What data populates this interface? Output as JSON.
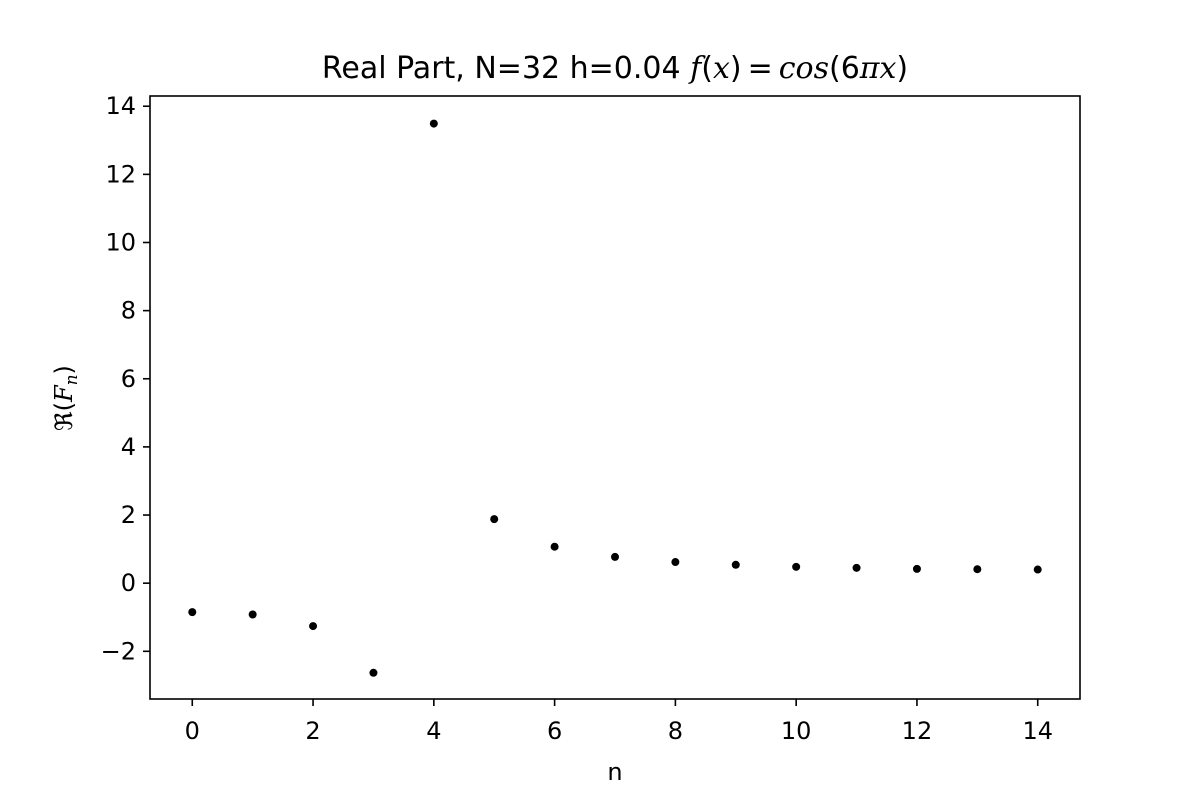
{
  "chart_data": {
    "type": "scatter",
    "title": {
      "prefix": "Real Part, N=32  h=0.04 ",
      "math": {
        "f": "f",
        "open": "(",
        "x": "x",
        "close_eq": ") = ",
        "cos": "cos",
        "arg_open": "(6",
        "pi": "π",
        "arg_x": "x",
        "arg_close": ")"
      }
    },
    "xlabel": "n",
    "ylabel": {
      "re": "ℜ(",
      "F": "F",
      "sub": "n",
      "close": ")"
    },
    "xlim": [
      -0.7,
      14.7
    ],
    "ylim": [
      -3.4,
      14.3
    ],
    "xticks": [
      0,
      2,
      4,
      6,
      8,
      10,
      12,
      14
    ],
    "xtick_labels": [
      "0",
      "2",
      "4",
      "6",
      "8",
      "10",
      "12",
      "14"
    ],
    "yticks": [
      -2,
      0,
      2,
      4,
      6,
      8,
      10,
      12,
      14
    ],
    "ytick_labels": [
      "−2",
      "0",
      "2",
      "4",
      "6",
      "8",
      "10",
      "12",
      "14"
    ],
    "grid": false,
    "legend": false,
    "marker_color": "#000000",
    "series": [
      {
        "x": [
          0,
          1,
          2,
          3,
          4,
          5,
          6,
          7,
          8,
          9,
          10,
          11,
          12,
          13,
          14
        ],
        "y": [
          -0.85,
          -0.92,
          -1.26,
          -2.63,
          13.49,
          1.88,
          1.07,
          0.77,
          0.62,
          0.54,
          0.48,
          0.45,
          0.42,
          0.41,
          0.4
        ]
      }
    ]
  }
}
